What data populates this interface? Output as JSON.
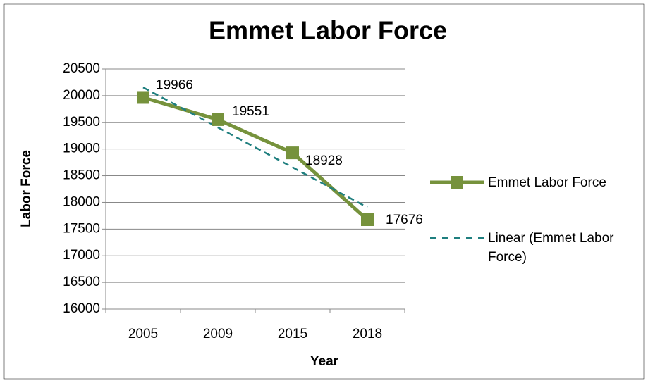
{
  "chart_data": {
    "type": "line",
    "title": "Emmet Labor Force",
    "x_label": "Year",
    "y_label": "Labor Force",
    "categories": [
      "2005",
      "2009",
      "2015",
      "2018"
    ],
    "series": [
      {
        "name": "Emmet Labor Force",
        "color": "#76923c",
        "values": [
          19966,
          19551,
          18928,
          17676
        ]
      }
    ],
    "trendline": {
      "name": "Linear (Emmet Labor Force)",
      "color": "#1f7f7f",
      "type": "linear"
    },
    "ylim": [
      16000,
      20500
    ],
    "yticks": [
      16000,
      16500,
      17000,
      17500,
      18000,
      18500,
      19000,
      19500,
      20000,
      20500
    ],
    "grid": true,
    "legend": "right"
  }
}
